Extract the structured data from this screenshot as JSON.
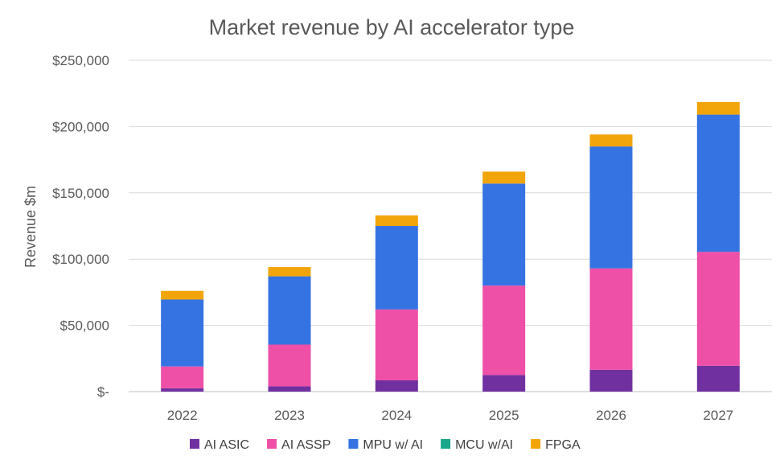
{
  "chart_data": {
    "type": "bar",
    "stacked": true,
    "title": "Market revenue by AI accelerator type",
    "xlabel": "",
    "ylabel": "Revenue $m",
    "ylim": [
      0,
      250000
    ],
    "yticks": [
      0,
      50000,
      100000,
      150000,
      200000,
      250000
    ],
    "ytick_labels": [
      "$-",
      "$50,000",
      "$100,000",
      "$150,000",
      "$200,000",
      "$250,000"
    ],
    "grid": true,
    "legend_position": "bottom",
    "categories": [
      "2022",
      "2023",
      "2024",
      "2025",
      "2026",
      "2027"
    ],
    "series": [
      {
        "name": "AI ASIC",
        "color": "#7030a0",
        "values": [
          2500,
          4000,
          8500,
          12500,
          16500,
          19500
        ]
      },
      {
        "name": "AI ASSP",
        "color": "#ee4fa7",
        "values": [
          16500,
          31500,
          53500,
          67500,
          76500,
          86000
        ]
      },
      {
        "name": "MPU w/ AI",
        "color": "#3573e3",
        "values": [
          50500,
          51500,
          63000,
          77000,
          92000,
          103500
        ]
      },
      {
        "name": "MCU w/AI",
        "color": "#1aa68a",
        "values": [
          0,
          0,
          0,
          0,
          0,
          0
        ]
      },
      {
        "name": "FPGA",
        "color": "#f2a50a",
        "values": [
          6500,
          7000,
          8000,
          9000,
          9000,
          9500
        ]
      }
    ]
  }
}
